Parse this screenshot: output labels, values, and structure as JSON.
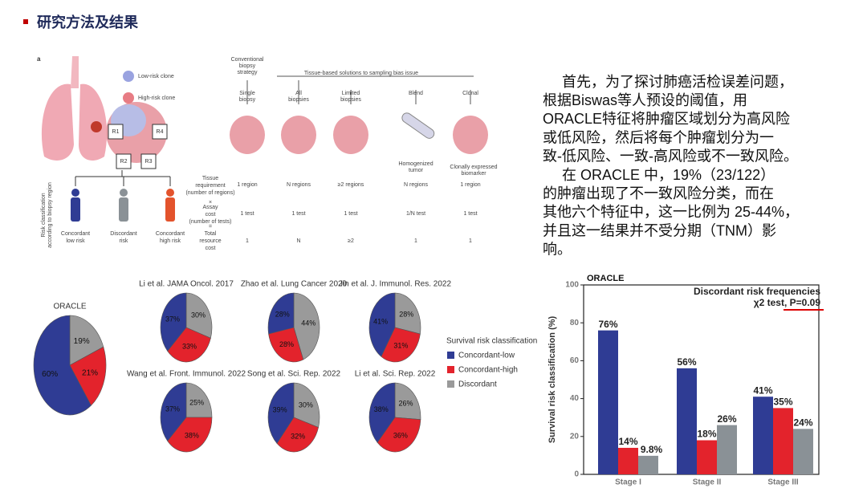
{
  "header": {
    "title": "研究方法及结果"
  },
  "text": {
    "lines": [
      "首先，为了探讨肺癌活检误差问题，",
      "根据Biswas等人预设的阈值，用",
      "ORACLE特征将肿瘤区域划分为高风险",
      "或低风险，然后将每个肿瘤划分为一",
      "致-低风险、一致-高风险或不一致风险。",
      "在 ORACLE 中，19%（23/122）",
      "的肿瘤出现了不一致风险分类，而在",
      "其他六个特征中，这一比例为 25-44%，",
      "并且这一结果并不受分期（TNM）影",
      "响。"
    ]
  },
  "diagram": {
    "label": "a",
    "clones": [
      "Low-risk clone",
      "High-risk clone"
    ],
    "regions": [
      "R1",
      "R2",
      "R3",
      "R4"
    ],
    "side_label": [
      "Risk classification",
      "according to biopsy region"
    ],
    "outcomes": [
      [
        "Concordant",
        "low risk"
      ],
      [
        "Discordant",
        "risk"
      ],
      [
        "Concordant",
        "high risk"
      ]
    ],
    "conventional": [
      "Conventional",
      "biopsy",
      "strategy"
    ],
    "solutions": "Tissue-based solutions to sampling bias issue",
    "columns": [
      [
        "Single",
        "biopsy"
      ],
      [
        "All",
        "biopsies"
      ],
      [
        "Limited",
        "biopsies"
      ],
      [
        "Blend"
      ],
      [
        "Clonal"
      ]
    ],
    "extras": [
      [
        "Homogenized",
        "tumor"
      ],
      [
        "Clonally expressed",
        "biomarker"
      ]
    ],
    "row_labels": [
      [
        "Tissue",
        "requirement",
        "(number of regions)"
      ],
      [
        "×"
      ],
      [
        "Assay",
        "cost",
        "(number of tests)"
      ],
      [
        "="
      ],
      [
        "Total",
        "resource",
        "cost"
      ]
    ],
    "rows": [
      [
        "1 region",
        "N regions",
        "≥2 regions",
        "N regions",
        "1 region"
      ],
      [
        "1 test",
        "1 test",
        "1 test",
        "1/N test",
        "1 test"
      ],
      [
        "1",
        "N",
        "≥2",
        "1",
        "1"
      ]
    ]
  },
  "legend": {
    "title": "Survival risk classification",
    "items": [
      "Concordant-low",
      "Concordant-high",
      "Discordant"
    ],
    "colors": [
      "#2f3c94",
      "#e3232c",
      "#9a9a9a"
    ]
  },
  "chart_data": [
    {
      "type": "pie",
      "title": "ORACLE",
      "values": [
        60,
        21,
        19
      ],
      "value_labels": [
        "60%",
        "21%",
        "19%"
      ]
    },
    {
      "type": "pie",
      "title": "Li et al. JAMA Oncol. 2017",
      "values": [
        37,
        33,
        30
      ],
      "value_labels": [
        "37%",
        "33%",
        "30%"
      ]
    },
    {
      "type": "pie",
      "title": "Zhao et al. Lung Cancer 2020",
      "values": [
        28,
        28,
        44
      ],
      "value_labels": [
        "28%",
        "28%",
        "44%"
      ]
    },
    {
      "type": "pie",
      "title": "Jin et al. J. Immunol. Res. 2022",
      "values": [
        41,
        31,
        28
      ],
      "value_labels": [
        "41%",
        "31%",
        "28%"
      ]
    },
    {
      "type": "pie",
      "title": "Wang et al. Front. Immunol. 2022",
      "values": [
        37,
        38,
        25
      ],
      "value_labels": [
        "37%",
        "38%",
        "25%"
      ]
    },
    {
      "type": "pie",
      "title": "Song et al. Sci. Rep. 2022",
      "values": [
        39,
        32,
        30
      ],
      "value_labels": [
        "39%",
        "32%",
        "30%"
      ]
    },
    {
      "type": "pie",
      "title": "Li et al. Sci. Rep. 2022",
      "values": [
        38,
        36,
        26
      ],
      "value_labels": [
        "38%",
        "36%",
        "26%"
      ]
    },
    {
      "type": "bar",
      "title": "ORACLE",
      "annotation": "Discordant risk frequencies",
      "test": "χ2 test, P=0.09",
      "ylabel": "Survival risk classification (%)",
      "categories": [
        "Stage I",
        "Stage II",
        "Stage III"
      ],
      "series": [
        {
          "color": "#2f3c94",
          "values": [
            76,
            56,
            41
          ],
          "value_labels": [
            "76%",
            "56%",
            "41%"
          ]
        },
        {
          "color": "#e3232c",
          "values": [
            14,
            18,
            35
          ],
          "value_labels": [
            "14%",
            "18%",
            "35%"
          ]
        },
        {
          "color": "#8a9196",
          "values": [
            9.8,
            26,
            24
          ],
          "value_labels": [
            "9.8%",
            "26%",
            "24%"
          ]
        }
      ],
      "ylim": [
        0,
        100
      ],
      "yticks": [
        0,
        20,
        40,
        60,
        80,
        100
      ]
    }
  ]
}
